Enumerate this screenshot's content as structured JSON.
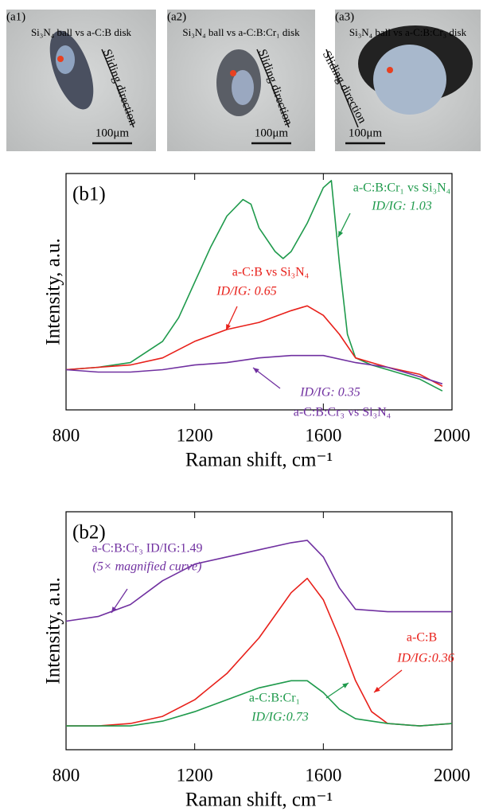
{
  "images": [
    {
      "label": "(a1)",
      "caption": "Si₃N₄ ball vs a-C:B disk",
      "direction": "Sliding direction",
      "scale": "100μm"
    },
    {
      "label": "(a2)",
      "caption": "Si₃N₄ ball vs a-C:B:Cr₁ disk",
      "direction": "Sliding direction",
      "scale": "100μm"
    },
    {
      "label": "(a3)",
      "caption": "Si₃N₄ ball vs a-C:B:Cr₃ disk",
      "direction": "Sliding direction",
      "scale": "100μm"
    }
  ],
  "chart_data": [
    {
      "type": "line",
      "panel": "(b1)",
      "xlabel": "Raman shift, cm⁻¹",
      "ylabel": "Intensity, a.u.",
      "xlim": [
        800,
        2000
      ],
      "xticks": [
        800,
        1200,
        1600,
        2000
      ],
      "ylim": [
        0,
        100
      ],
      "series": [
        {
          "name": "a-C:B:Cr₁ vs Si₃N₄",
          "ratio_label": "ID/IG: 1.03",
          "color": "#1f9a4c",
          "x": [
            800,
            900,
            1000,
            1100,
            1150,
            1200,
            1250,
            1300,
            1350,
            1375,
            1400,
            1450,
            1475,
            1500,
            1550,
            1600,
            1625,
            1650,
            1675,
            1700,
            1750,
            1800,
            1900,
            1970
          ],
          "values": [
            17,
            18,
            20,
            29,
            39,
            54,
            69,
            82,
            89,
            87,
            77,
            67,
            64,
            67,
            79,
            94,
            97,
            62,
            32,
            22,
            19,
            17,
            13,
            8
          ]
        },
        {
          "name": "a-C:B vs Si₃N₄",
          "ratio_label": "ID/IG: 0.65",
          "color": "#e8201a",
          "x": [
            800,
            900,
            1000,
            1100,
            1200,
            1300,
            1400,
            1500,
            1550,
            1600,
            1650,
            1700,
            1750,
            1800,
            1900,
            1970
          ],
          "values": [
            17,
            18,
            19,
            22,
            29,
            34,
            37,
            42,
            44,
            40,
            32,
            22,
            20,
            18,
            15,
            10
          ]
        },
        {
          "name": "a-C:B:Cr₃ vs Si₃N₄",
          "ratio_label": "ID/IG: 0.35",
          "color": "#7030a0",
          "x": [
            800,
            900,
            1000,
            1100,
            1200,
            1300,
            1400,
            1500,
            1600,
            1700,
            1800,
            1900,
            1970
          ],
          "values": [
            17,
            16,
            16,
            17,
            19,
            20,
            22,
            23,
            23,
            20,
            18,
            14,
            11
          ]
        }
      ]
    },
    {
      "type": "line",
      "panel": "(b2)",
      "xlabel": "Raman shift, cm⁻¹",
      "ylabel": "Intensity, a.u.",
      "xlim": [
        800,
        2000
      ],
      "xticks": [
        800,
        1200,
        1600,
        2000
      ],
      "ylim": [
        0,
        100
      ],
      "series": [
        {
          "name": "a-C:B:Cr₃ ID/IG:1.49",
          "ratio_label": "(5× magnified curve)",
          "color": "#7030a0",
          "x": [
            800,
            900,
            1000,
            1100,
            1200,
            1300,
            1400,
            1500,
            1550,
            1600,
            1650,
            1700,
            1800,
            1900,
            2000
          ],
          "values": [
            54,
            56,
            61,
            71,
            78,
            81,
            84,
            87,
            88,
            81,
            68,
            59,
            58,
            58,
            58
          ]
        },
        {
          "name": "a-C:B",
          "ratio_label": "ID/IG:0.36",
          "color": "#e8201a",
          "x": [
            800,
            900,
            1000,
            1100,
            1200,
            1300,
            1400,
            1500,
            1550,
            1600,
            1650,
            1700,
            1750,
            1800,
            1900,
            2000
          ],
          "values": [
            10,
            10,
            11,
            14,
            21,
            32,
            47,
            66,
            72,
            63,
            47,
            29,
            16,
            11,
            10,
            11
          ]
        },
        {
          "name": "a-C:B:Cr₁",
          "ratio_label": "ID/IG:0.73",
          "color": "#1f9a4c",
          "x": [
            800,
            900,
            1000,
            1100,
            1200,
            1300,
            1400,
            1500,
            1550,
            1600,
            1650,
            1700,
            1800,
            1900,
            2000
          ],
          "values": [
            10,
            10,
            10,
            12,
            16,
            21,
            26,
            29,
            29,
            24,
            17,
            13,
            11,
            10,
            11
          ]
        }
      ]
    }
  ]
}
